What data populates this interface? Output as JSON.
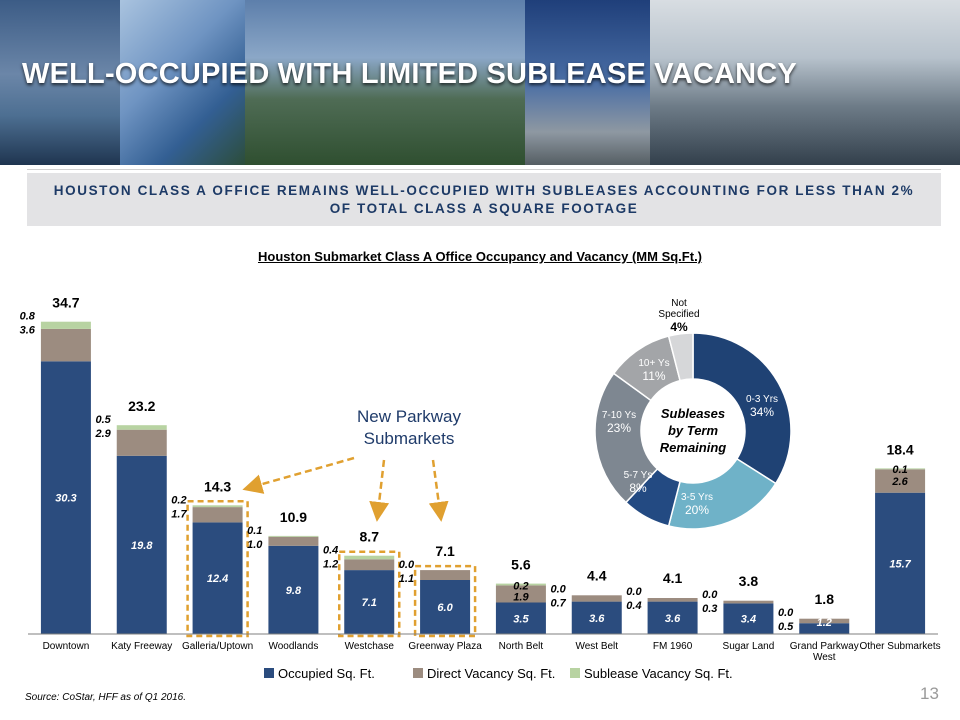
{
  "slide": {
    "title": "WELL-OCCUPIED WITH LIMITED SUBLEASE VACANCY",
    "subtitle": "HOUSTON CLASS A OFFICE REMAINS WELL-OCCUPIED WITH SUBLEASES ACCOUNTING FOR LESS THAN 2% OF TOTAL CLASS A SQUARE FOOTAGE",
    "source": "Source: CoStar, HFF as of Q1 2016.",
    "page_number": "13"
  },
  "colors": {
    "occupied": "#2b4c7e",
    "direct": "#9c8c80",
    "sublease": "#b8d3a2",
    "title_text": "#1d3a66",
    "highlight": "#e0a030"
  },
  "chart_data": [
    {
      "type": "bar",
      "stacked": true,
      "title": "Houston Submarket Class A Office Occupancy and Vacancy (MM Sq.Ft.)",
      "categories": [
        "Downtown",
        "Katy Freeway",
        "Galleria/Uptown",
        "Woodlands",
        "Westchase",
        "Greenway Plaza",
        "North Belt",
        "West Belt",
        "FM 1960",
        "Sugar Land",
        "Grand Parkway West",
        "Other Submarkets"
      ],
      "series": [
        {
          "name": "Occupied Sq. Ft.",
          "values": [
            30.3,
            19.8,
            12.4,
            9.8,
            7.1,
            6.0,
            3.5,
            3.6,
            3.6,
            3.4,
            1.2,
            15.7
          ]
        },
        {
          "name": "Direct Vacancy Sq. Ft.",
          "values": [
            3.6,
            2.9,
            1.7,
            1.0,
            1.2,
            1.1,
            1.9,
            0.7,
            0.4,
            0.3,
            0.5,
            2.6
          ]
        },
        {
          "name": "Sublease Vacancy Sq. Ft.",
          "values": [
            0.8,
            0.5,
            0.2,
            0.1,
            0.4,
            0.0,
            0.2,
            0.0,
            0.0,
            0.0,
            0.0,
            0.1
          ]
        }
      ],
      "totals": [
        34.7,
        23.2,
        14.3,
        10.9,
        8.7,
        7.1,
        5.6,
        4.4,
        4.1,
        3.8,
        1.8,
        18.4
      ],
      "ylim": [
        0,
        36
      ],
      "highlighted_categories": [
        "Galleria/Uptown",
        "Westchase",
        "Greenway Plaza"
      ],
      "annotation": "New Parkway Submarkets",
      "legend_position": "bottom"
    },
    {
      "type": "pie",
      "donut": true,
      "center_label": "Subleases by Term Remaining",
      "slices": [
        {
          "label": "0-3 Yrs",
          "value": 34,
          "display": "34%",
          "color": "#1f4274"
        },
        {
          "label": "3-5 Yrs",
          "value": 20,
          "display": "20%",
          "color": "#6fb2c8"
        },
        {
          "label": "5-7 Ys",
          "value": 8,
          "display": "8%",
          "color": "#234a82"
        },
        {
          "label": "7-10 Ys",
          "value": 23,
          "display": "23%",
          "color": "#7e8791"
        },
        {
          "label": "10+ Ys",
          "value": 11,
          "display": "11%",
          "color": "#a3a5a8"
        },
        {
          "label": "Not Specified",
          "value": 4,
          "display": "4%",
          "color": "#d6d7d9"
        }
      ]
    }
  ]
}
